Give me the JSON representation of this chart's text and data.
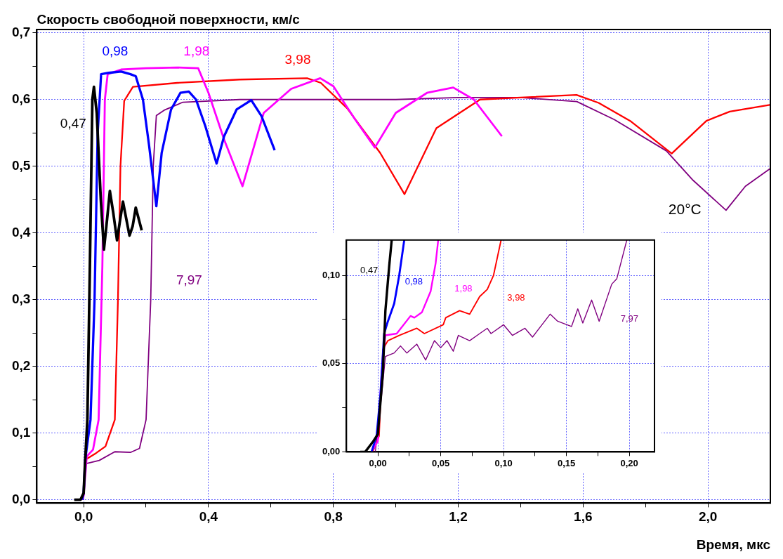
{
  "chart_data": [
    {
      "type": "line",
      "xlabel": "Время, мкс",
      "ylabel": "Скорость свободной поверхности, км/с",
      "marker": "none",
      "legend": false,
      "grid": true,
      "xlim": [
        -0.15,
        2.2
      ],
      "ylim": [
        -0.005,
        0.705
      ],
      "xticks": [
        {
          "value": 0,
          "label": "0,0"
        },
        {
          "value": 0.2,
          "label": null
        },
        {
          "value": 0.4,
          "label": "0,4"
        },
        {
          "value": 0.6,
          "label": null
        },
        {
          "value": 0.8,
          "label": "0,8"
        },
        {
          "value": 1.0,
          "label": null
        },
        {
          "value": 1.2,
          "label": "1,2"
        },
        {
          "value": 1.4,
          "label": null
        },
        {
          "value": 1.6,
          "label": "1,6"
        },
        {
          "value": 1.8,
          "label": null
        },
        {
          "value": 2.0,
          "label": "2,0"
        }
      ],
      "yticks": [
        {
          "value": 0,
          "label": "0,0"
        },
        {
          "value": 0.05,
          "label": null
        },
        {
          "value": 0.1,
          "label": "0,1"
        },
        {
          "value": 0.15,
          "label": null
        },
        {
          "value": 0.2,
          "label": "0,2"
        },
        {
          "value": 0.25,
          "label": null
        },
        {
          "value": 0.3,
          "label": "0,3"
        },
        {
          "value": 0.35,
          "label": null
        },
        {
          "value": 0.4,
          "label": "0,4"
        },
        {
          "value": 0.45,
          "label": null
        },
        {
          "value": 0.5,
          "label": "0,5"
        },
        {
          "value": 0.55,
          "label": null
        },
        {
          "value": 0.6,
          "label": "0,6"
        },
        {
          "value": 0.65,
          "label": null
        },
        {
          "value": 0.7,
          "label": "0,7"
        }
      ],
      "annotations": [
        "20°C"
      ],
      "series": [
        {
          "name": "0,47",
          "color": "#000000",
          "x": [
            -0.03,
            -0.01,
            0,
            0.004,
            0.012,
            0.02,
            0.028,
            0.033,
            0.042,
            0.055,
            0.065,
            0.075,
            0.084,
            0.095,
            0.107,
            0.117,
            0.126,
            0.137,
            0.147,
            0.157,
            0.167,
            0.186
          ],
          "values": [
            0,
            0,
            0.01,
            0.05,
            0.12,
            0.35,
            0.6,
            0.619,
            0.58,
            0.45,
            0.375,
            0.42,
            0.463,
            0.43,
            0.389,
            0.42,
            0.447,
            0.42,
            0.396,
            0.41,
            0.438,
            0.404
          ]
        },
        {
          "name": "0,98",
          "color": "#0000ff",
          "x": [
            -0.005,
            0,
            0.005,
            0.022,
            0.035,
            0.045,
            0.056,
            0.08,
            0.12,
            0.15,
            0.167,
            0.19,
            0.21,
            0.233,
            0.25,
            0.28,
            0.31,
            0.337,
            0.36,
            0.39,
            0.426,
            0.45,
            0.49,
            0.537,
            0.57,
            0.612
          ],
          "values": [
            0,
            0.01,
            0.06,
            0.12,
            0.3,
            0.55,
            0.638,
            0.64,
            0.642,
            0.638,
            0.635,
            0.6,
            0.53,
            0.44,
            0.52,
            0.585,
            0.61,
            0.612,
            0.6,
            0.56,
            0.504,
            0.545,
            0.585,
            0.599,
            0.575,
            0.524
          ]
        },
        {
          "name": "1,98",
          "color": "#ff00ff",
          "x": [
            -0.005,
            0,
            0.01,
            0.03,
            0.048,
            0.06,
            0.068,
            0.077,
            0.12,
            0.2,
            0.3,
            0.367,
            0.4,
            0.45,
            0.509,
            0.577,
            0.665,
            0.758,
            0.8,
            0.87,
            0.933,
            1.0,
            1.1,
            1.184,
            1.25,
            1.34
          ],
          "values": [
            0,
            0.006,
            0.065,
            0.075,
            0.12,
            0.35,
            0.6,
            0.638,
            0.645,
            0.647,
            0.648,
            0.647,
            0.61,
            0.54,
            0.47,
            0.58,
            0.616,
            0.632,
            0.62,
            0.57,
            0.528,
            0.58,
            0.61,
            0.618,
            0.6,
            0.545
          ]
        },
        {
          "name": "3,98",
          "color": "#ff0000",
          "x": [
            -0.004,
            0.001,
            0.005,
            0.04,
            0.07,
            0.1,
            0.11,
            0.118,
            0.13,
            0.158,
            0.3,
            0.5,
            0.716,
            0.76,
            0.844,
            0.95,
            1.028,
            1.13,
            1.27,
            1.4,
            1.579,
            1.65,
            1.751,
            1.884,
            1.995,
            2.07,
            2.198
          ],
          "values": [
            0,
            0.009,
            0.06,
            0.07,
            0.08,
            0.12,
            0.3,
            0.5,
            0.598,
            0.619,
            0.625,
            0.63,
            0.632,
            0.625,
            0.587,
            0.52,
            0.458,
            0.557,
            0.6,
            0.603,
            0.607,
            0.595,
            0.568,
            0.519,
            0.568,
            0.582,
            0.592
          ]
        },
        {
          "name": "7,97",
          "color": "#800080",
          "x": [
            -0.002,
            0.006,
            0.05,
            0.1,
            0.15,
            0.179,
            0.2,
            0.215,
            0.223,
            0.233,
            0.258,
            0.318,
            0.5,
            0.8,
            1.0,
            1.2,
            1.4,
            1.58,
            1.7,
            1.867,
            1.95,
            2.058,
            2.12,
            2.198
          ],
          "values": [
            0,
            0.054,
            0.059,
            0.072,
            0.071,
            0.077,
            0.12,
            0.3,
            0.5,
            0.576,
            0.584,
            0.596,
            0.6,
            0.6,
            0.6,
            0.603,
            0.603,
            0.597,
            0.57,
            0.523,
            0.48,
            0.434,
            0.47,
            0.496
          ]
        }
      ]
    },
    {
      "type": "line",
      "marker": "none",
      "legend": false,
      "grid": true,
      "xlim": [
        -0.025,
        0.22
      ],
      "ylim": [
        0,
        0.12
      ],
      "xticks": [
        {
          "value": 0,
          "label": "0,00"
        },
        {
          "value": 0.025,
          "label": null
        },
        {
          "value": 0.05,
          "label": "0,05"
        },
        {
          "value": 0.075,
          "label": null
        },
        {
          "value": 0.1,
          "label": "0,10"
        },
        {
          "value": 0.125,
          "label": null
        },
        {
          "value": 0.15,
          "label": "0,15"
        },
        {
          "value": 0.175,
          "label": null
        },
        {
          "value": 0.2,
          "label": "0,20"
        }
      ],
      "yticks": [
        {
          "value": 0,
          "label": "0,00"
        },
        {
          "value": 0.025,
          "label": null
        },
        {
          "value": 0.05,
          "label": "0,05"
        },
        {
          "value": 0.075,
          "label": null
        },
        {
          "value": 0.1,
          "label": "0,10"
        }
      ],
      "series": [
        {
          "name": "0,47",
          "color": "#000000",
          "x": [
            -0.014,
            -0.01,
            -0.004,
            0,
            0.004,
            0.006,
            0.009,
            0.011
          ],
          "values": [
            0,
            0,
            0.0056,
            0.01,
            0.045,
            0.08,
            0.105,
            0.12
          ]
        },
        {
          "name": "0,98",
          "color": "#0000ff",
          "x": [
            -0.005,
            -0.001,
            0.002,
            0.005,
            0.008,
            0.013,
            0.017,
            0.021
          ],
          "values": [
            0,
            0.009,
            0.032,
            0.067,
            0.074,
            0.084,
            0.1,
            0.12
          ]
        },
        {
          "name": "1,98",
          "color": "#ff00ff",
          "x": [
            -0.005,
            0,
            0.003,
            0.006,
            0.015,
            0.026,
            0.029,
            0.035,
            0.042,
            0.046,
            0.048
          ],
          "values": [
            0,
            0.006,
            0.045,
            0.066,
            0.067,
            0.077,
            0.076,
            0.079,
            0.091,
            0.107,
            0.12
          ]
        },
        {
          "name": "3,98",
          "color": "#ff0000",
          "x": [
            -0.004,
            0.001,
            0.004,
            0.008,
            0.017,
            0.031,
            0.037,
            0.052,
            0.054,
            0.065,
            0.073,
            0.081,
            0.087,
            0.092,
            0.098
          ],
          "values": [
            0,
            0.009,
            0.058,
            0.063,
            0.066,
            0.07,
            0.067,
            0.072,
            0.076,
            0.08,
            0.078,
            0.088,
            0.092,
            0.1,
            0.12
          ]
        },
        {
          "name": "7,97",
          "color": "#800080",
          "x": [
            -0.002,
            0.003,
            0.006,
            0.013,
            0.018,
            0.023,
            0.031,
            0.038,
            0.045,
            0.05,
            0.055,
            0.06,
            0.064,
            0.073,
            0.081,
            0.087,
            0.09,
            0.1,
            0.107,
            0.117,
            0.123,
            0.137,
            0.143,
            0.154,
            0.159,
            0.163,
            0.17,
            0.176,
            0.186,
            0.19,
            0.198
          ],
          "values": [
            0,
            0.032,
            0.054,
            0.056,
            0.06,
            0.056,
            0.061,
            0.052,
            0.063,
            0.059,
            0.063,
            0.057,
            0.066,
            0.063,
            0.067,
            0.07,
            0.067,
            0.072,
            0.066,
            0.07,
            0.065,
            0.078,
            0.074,
            0.071,
            0.081,
            0.073,
            0.086,
            0.074,
            0.095,
            0.098,
            0.12
          ]
        }
      ]
    }
  ]
}
